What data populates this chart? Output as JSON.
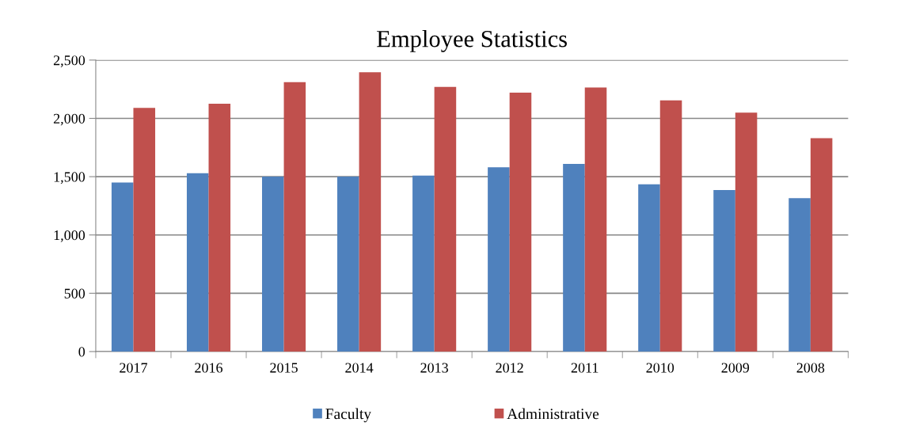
{
  "chart_data": {
    "type": "bar",
    "title": "Employee Statistics",
    "categories": [
      "2017",
      "2016",
      "2015",
      "2014",
      "2013",
      "2012",
      "2011",
      "2010",
      "2009",
      "2008"
    ],
    "series": [
      {
        "name": "Faculty",
        "color": "#4f81bd",
        "values": [
          1450,
          1530,
          1500,
          1500,
          1510,
          1580,
          1610,
          1435,
          1385,
          1315
        ]
      },
      {
        "name": "Administrative",
        "color": "#c0504d",
        "values": [
          2090,
          2125,
          2310,
          2395,
          2270,
          2220,
          2265,
          2155,
          2050,
          1830
        ]
      }
    ],
    "ylim": [
      0,
      2500
    ],
    "yticks": [
      {
        "value": 0,
        "label": "0"
      },
      {
        "value": 500,
        "label": "500"
      },
      {
        "value": 1000,
        "label": "1,000"
      },
      {
        "value": 1500,
        "label": "1,500"
      },
      {
        "value": 2000,
        "label": "2,000"
      },
      {
        "value": 2500,
        "label": "2,500"
      }
    ],
    "grid": "y",
    "legend": "bottom"
  }
}
